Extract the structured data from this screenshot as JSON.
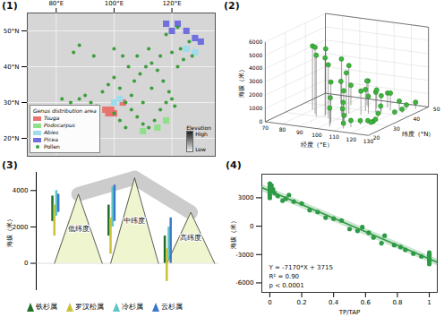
{
  "chart_data": [
    {
      "type": "map",
      "label": "(1)",
      "xlim": [
        70,
        135
      ],
      "ylim": [
        15,
        55
      ],
      "xticks": [
        {
          "value": 80,
          "label": "80°E"
        },
        {
          "value": 100,
          "label": "100°E"
        },
        {
          "value": 120,
          "label": "120°E"
        }
      ],
      "yticks": [
        {
          "value": 20,
          "label": "20°N"
        },
        {
          "value": 30,
          "label": "30°N"
        },
        {
          "value": 40,
          "label": "40°N"
        },
        {
          "value": 50,
          "label": "50°N"
        }
      ],
      "legend_title": "Genus distribution area",
      "series": [
        {
          "name": "Tsuga",
          "color": "#e8736f",
          "points": [
            [
              98,
              27
            ],
            [
              99,
              28
            ],
            [
              100,
              27
            ],
            [
              97,
              28
            ],
            [
              103,
              30
            ]
          ]
        },
        {
          "name": "Podocarpus",
          "color": "#8fe08a",
          "points": [
            [
              118,
              25
            ],
            [
              110,
              22
            ],
            [
              115,
              23
            ]
          ]
        },
        {
          "name": "Abies",
          "color": "#9edcec",
          "points": [
            [
              125,
              45
            ],
            [
              128,
              44
            ],
            [
              100,
              30
            ],
            [
              102,
              31
            ]
          ]
        },
        {
          "name": "Picea",
          "color": "#6f6fe0",
          "points": [
            [
              122,
              52
            ],
            [
              125,
              50
            ],
            [
              128,
              48
            ],
            [
              130,
              47
            ],
            [
              120,
              50
            ],
            [
              118,
              52
            ]
          ]
        }
      ],
      "pollen": {
        "name": "Pollen",
        "color": "#33a833",
        "points": [
          [
            82,
            31
          ],
          [
            85,
            30
          ],
          [
            88,
            31
          ],
          [
            90,
            32
          ],
          [
            92,
            30
          ],
          [
            94,
            29
          ],
          [
            96,
            33
          ],
          [
            98,
            35
          ],
          [
            100,
            37
          ],
          [
            102,
            34
          ],
          [
            104,
            30
          ],
          [
            106,
            28
          ],
          [
            108,
            26
          ],
          [
            110,
            24
          ],
          [
            112,
            23
          ],
          [
            114,
            25
          ],
          [
            116,
            28
          ],
          [
            118,
            30
          ],
          [
            120,
            31
          ],
          [
            121,
            29
          ],
          [
            119,
            33
          ],
          [
            117,
            36
          ],
          [
            115,
            39
          ],
          [
            113,
            41
          ],
          [
            111,
            40
          ],
          [
            109,
            38
          ],
          [
            107,
            36
          ],
          [
            105,
            40
          ],
          [
            103,
            43
          ],
          [
            100,
            45
          ],
          [
            108,
            43
          ],
          [
            112,
            45
          ],
          [
            116,
            43
          ],
          [
            120,
            44
          ],
          [
            123,
            45
          ],
          [
            126,
            47
          ],
          [
            124,
            42
          ],
          [
            122,
            40
          ],
          [
            100,
            27
          ],
          [
            102,
            25
          ],
          [
            104,
            23
          ],
          [
            106,
            32
          ],
          [
            110,
            30
          ],
          [
            113,
            34
          ],
          [
            86,
            44
          ],
          [
            88,
            46
          ],
          [
            93,
            43
          ],
          [
            118,
            49
          ],
          [
            122,
            51
          ],
          [
            127,
            43
          ]
        ]
      },
      "colorbar": {
        "title": "Elevation",
        "labels": [
          "High",
          "Low"
        ]
      }
    },
    {
      "type": "scatter3d",
      "label": "(2)",
      "xlabel": "经度（°E）",
      "ylabel": "纬度（°N）",
      "zlabel": "海拔（米）",
      "xlim": [
        70,
        130
      ],
      "ylim": [
        20,
        50
      ],
      "zlim": [
        0,
        6000
      ],
      "xticks": [
        70,
        80,
        90,
        100,
        110,
        120,
        130
      ],
      "yticks": [
        20,
        30,
        40,
        50
      ],
      "zticks": [
        0,
        1000,
        2000,
        3000,
        4000,
        5000,
        6000
      ],
      "color": "#3db53d",
      "points": [
        [
          80,
          35,
          4800
        ],
        [
          85,
          32,
          5000
        ],
        [
          88,
          30,
          4600
        ],
        [
          90,
          33,
          4900
        ],
        [
          92,
          31,
          4400
        ],
        [
          95,
          30,
          4000
        ],
        [
          98,
          34,
          4200
        ],
        [
          100,
          36,
          3600
        ],
        [
          102,
          33,
          3300
        ],
        [
          104,
          30,
          2200
        ],
        [
          106,
          28,
          1500
        ],
        [
          108,
          26,
          1200
        ],
        [
          110,
          25,
          800
        ],
        [
          112,
          23,
          400
        ],
        [
          114,
          25,
          500
        ],
        [
          116,
          28,
          300
        ],
        [
          118,
          30,
          200
        ],
        [
          120,
          31,
          100
        ],
        [
          121,
          29,
          200
        ],
        [
          119,
          33,
          100
        ],
        [
          117,
          36,
          300
        ],
        [
          115,
          39,
          600
        ],
        [
          113,
          41,
          1200
        ],
        [
          111,
          40,
          1500
        ],
        [
          109,
          38,
          1300
        ],
        [
          107,
          36,
          1800
        ],
        [
          105,
          40,
          1600
        ],
        [
          103,
          43,
          2000
        ],
        [
          100,
          45,
          1800
        ],
        [
          108,
          43,
          1400
        ],
        [
          112,
          45,
          1100
        ],
        [
          116,
          43,
          1300
        ],
        [
          120,
          44,
          700
        ],
        [
          123,
          45,
          400
        ],
        [
          126,
          47,
          500
        ],
        [
          124,
          42,
          300
        ],
        [
          122,
          40,
          200
        ],
        [
          100,
          27,
          3000
        ],
        [
          102,
          25,
          2000
        ],
        [
          104,
          23,
          1400
        ],
        [
          86,
          44,
          1600
        ],
        [
          93,
          43,
          1500
        ]
      ]
    },
    {
      "type": "diagram",
      "label": "(3)",
      "ylabel": "海拔（米）",
      "ylim": [
        -1500,
        5000
      ],
      "yticks": [
        0,
        2000,
        4000
      ],
      "series": [
        {
          "name": "铁杉属",
          "color": "#1f6e2a"
        },
        {
          "name": "罗汉松属",
          "color": "#c9c23a"
        },
        {
          "name": "冷杉属",
          "color": "#5cc6c6"
        },
        {
          "name": "云杉属",
          "color": "#3a78c9"
        }
      ],
      "mountains": [
        {
          "name": "低纬度",
          "peak": 3800,
          "ranges": [
            [
              2300,
              3700
            ],
            [
              1500,
              3200
            ],
            [
              2600,
              4000
            ],
            [
              2800,
              3800
            ]
          ]
        },
        {
          "name": "中纬度",
          "peak": 4700,
          "ranges": [
            [
              1500,
              3200
            ],
            [
              500,
              2500
            ],
            [
              2000,
              4200
            ],
            [
              2300,
              4300
            ]
          ]
        },
        {
          "name": "高纬度",
          "peak": 2800,
          "ranges": [
            [
              0,
              1500
            ],
            [
              -1000,
              800
            ],
            [
              200,
              2000
            ],
            [
              0,
              2500
            ]
          ]
        }
      ]
    },
    {
      "type": "scatter",
      "label": "(4)",
      "xlabel": "TP/TAP",
      "ylabel": "海拔（米）",
      "xlim": [
        -0.05,
        1.05
      ],
      "ylim": [
        -7000,
        5500
      ],
      "xticks": [
        0,
        0.2,
        0.4,
        0.6,
        0.8,
        1
      ],
      "yticks": [
        -6000,
        -3000,
        0,
        3000
      ],
      "color": "#2e9a45",
      "x": [
        0,
        0,
        0,
        0,
        0,
        0,
        0,
        0.01,
        0.02,
        0.03,
        0.05,
        0.08,
        0.1,
        0.12,
        0.15,
        0.2,
        0.25,
        0.3,
        0.35,
        0.4,
        0.45,
        0.5,
        0.55,
        0.58,
        0.62,
        0.65,
        0.7,
        0.72,
        0.78,
        0.82,
        0.85,
        0.9,
        0.95,
        1,
        1,
        1,
        1,
        1,
        1,
        1
      ],
      "values": [
        4500,
        4200,
        4000,
        3800,
        3600,
        3300,
        3000,
        4300,
        3900,
        3500,
        3200,
        2700,
        2900,
        3300,
        2600,
        2400,
        1700,
        1500,
        900,
        800,
        600,
        -300,
        -500,
        -100,
        -700,
        -1200,
        -1800,
        -1000,
        -2000,
        -2200,
        -2500,
        -2900,
        -3200,
        -2800,
        -3000,
        -3300,
        -3500,
        -3700,
        -4000,
        -3100
      ],
      "regression": {
        "slope": -7170,
        "intercept": 3715
      },
      "annotations": [
        "Y = -7170*X + 3715",
        "R² = 0.90",
        "p < 0.0001"
      ]
    }
  ]
}
